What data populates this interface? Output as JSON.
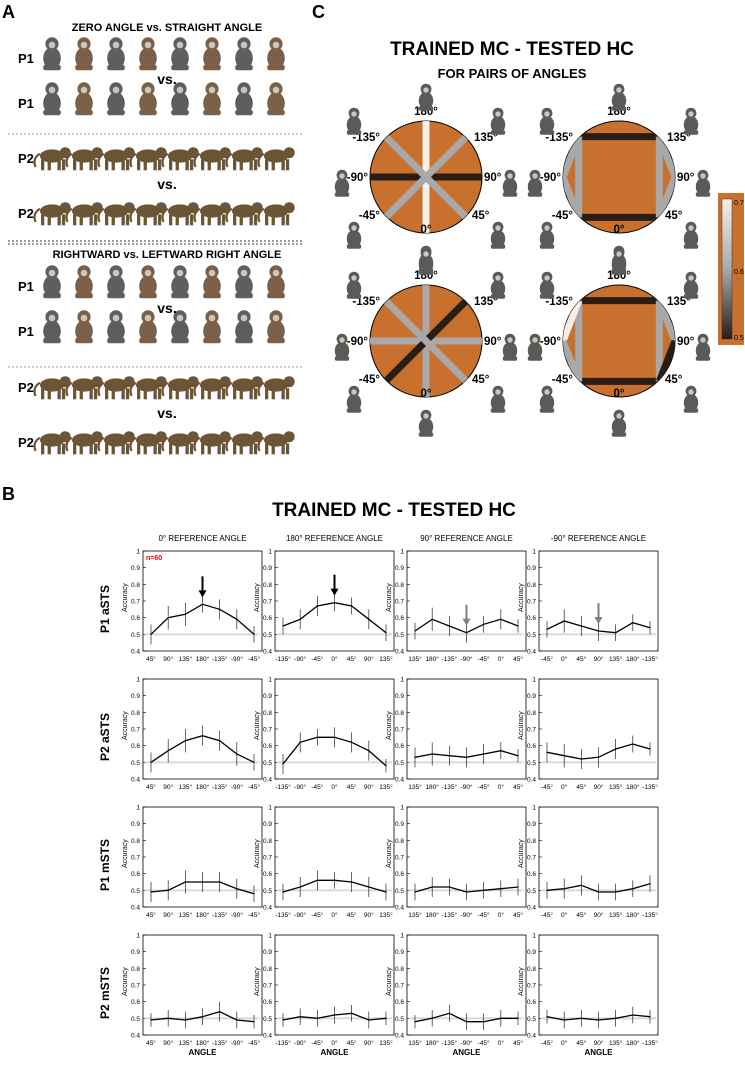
{
  "panels": {
    "a": {
      "letter": "A",
      "section1_title": "ZERO ANGLE vs. STRAIGHT ANGLE",
      "section2_title": "RIGHTWARD vs. LEFTWARD RIGHT ANGLE",
      "rows": [
        {
          "label": "P1",
          "species": "macaque"
        },
        {
          "label": "P1",
          "species": "macaque"
        },
        {
          "label": "P2",
          "species": "baboon"
        },
        {
          "label": "P2",
          "species": "baboon"
        },
        {
          "label": "P1",
          "species": "macaque"
        },
        {
          "label": "P1",
          "species": "macaque"
        },
        {
          "label": "P2",
          "species": "baboon"
        },
        {
          "label": "P2",
          "species": "baboon"
        }
      ],
      "vs_label": "vs."
    },
    "b": {
      "letter": "B",
      "title": "TRAINED MC - TESTED HC"
    },
    "c": {
      "letter": "C",
      "title": "TRAINED MC - TESTED HC",
      "subtitle": "FOR PAIRS OF ANGLES",
      "angle_labels": [
        "180°",
        "135°",
        "90°",
        "45°",
        "0°",
        "-45°",
        "-90°",
        "-135°"
      ],
      "colorbar_ticks": [
        "0.7",
        "0.6",
        "0.5"
      ],
      "colors": {
        "disc": "#c8702e",
        "frame": "#c8702e",
        "bar_high": "#f7efe6",
        "bar_mid": "#a9a9a9",
        "bar_low": "#2a1d14"
      }
    }
  },
  "chart_data": {
    "type": "line",
    "title": "TRAINED MC - TESTED HC",
    "ylabel": "Accuracy",
    "xlabel": "ANGLE",
    "ylim": [
      0.4,
      1.0
    ],
    "yticks": [
      "0.4",
      "0.5",
      "0.6",
      "0.7",
      "0.8",
      "0.9",
      "1"
    ],
    "chance": 0.5,
    "n_label": "n=60",
    "columns": [
      {
        "title": "0° REFERENCE ANGLE",
        "categories": [
          "45°",
          "90°",
          "135°",
          "180°",
          "-135°",
          "-90°",
          "-45°"
        ],
        "arrow_index": 3,
        "arrow_color": "#000000"
      },
      {
        "title": "180° REFERENCE ANGLE",
        "categories": [
          "-135°",
          "-90°",
          "-45°",
          "0°",
          "45°",
          "90°",
          "135°"
        ],
        "arrow_index": 3,
        "arrow_color": "#000000"
      },
      {
        "title": "90° REFERENCE ANGLE",
        "categories": [
          "135°",
          "180°",
          "-135°",
          "-90°",
          "-45°",
          "0°",
          "45°"
        ],
        "arrow_index": 3,
        "arrow_color": "#7f7f7f"
      },
      {
        "title": "-90° REFERENCE ANGLE",
        "categories": [
          "-45°",
          "0°",
          "45°",
          "90°",
          "135°",
          "180°",
          "-135°"
        ],
        "arrow_index": 3,
        "arrow_color": "#7f7f7f"
      }
    ],
    "rows": [
      {
        "label": "P1 aSTS",
        "series": [
          {
            "values": [
              0.5,
              0.6,
              0.62,
              0.68,
              0.65,
              0.59,
              0.5
            ],
            "errors": [
              0.06,
              0.07,
              0.07,
              0.05,
              0.06,
              0.06,
              0.05
            ]
          },
          {
            "values": [
              0.55,
              0.59,
              0.67,
              0.69,
              0.67,
              0.59,
              0.51
            ],
            "errors": [
              0.05,
              0.06,
              0.06,
              0.05,
              0.05,
              0.06,
              0.05
            ]
          },
          {
            "values": [
              0.52,
              0.59,
              0.55,
              0.51,
              0.56,
              0.59,
              0.55
            ],
            "errors": [
              0.05,
              0.07,
              0.06,
              0.06,
              0.05,
              0.06,
              0.04
            ]
          },
          {
            "values": [
              0.53,
              0.58,
              0.55,
              0.52,
              0.51,
              0.57,
              0.54
            ],
            "errors": [
              0.05,
              0.07,
              0.06,
              0.06,
              0.05,
              0.05,
              0.04
            ]
          }
        ]
      },
      {
        "label": "P2 aSTS",
        "series": [
          {
            "values": [
              0.5,
              0.57,
              0.63,
              0.66,
              0.63,
              0.55,
              0.5
            ],
            "errors": [
              0.06,
              0.07,
              0.07,
              0.06,
              0.06,
              0.07,
              0.05
            ]
          },
          {
            "values": [
              0.49,
              0.62,
              0.65,
              0.65,
              0.62,
              0.57,
              0.48
            ],
            "errors": [
              0.06,
              0.06,
              0.05,
              0.06,
              0.06,
              0.06,
              0.04
            ]
          },
          {
            "values": [
              0.53,
              0.55,
              0.54,
              0.53,
              0.55,
              0.57,
              0.54
            ],
            "errors": [
              0.06,
              0.07,
              0.06,
              0.06,
              0.06,
              0.05,
              0.04
            ]
          },
          {
            "values": [
              0.56,
              0.54,
              0.52,
              0.53,
              0.58,
              0.61,
              0.58
            ],
            "errors": [
              0.06,
              0.07,
              0.06,
              0.06,
              0.06,
              0.05,
              0.04
            ]
          }
        ]
      },
      {
        "label": "P1 mSTS",
        "series": [
          {
            "values": [
              0.49,
              0.5,
              0.55,
              0.55,
              0.55,
              0.51,
              0.48
            ],
            "errors": [
              0.06,
              0.06,
              0.07,
              0.06,
              0.06,
              0.06,
              0.05
            ]
          },
          {
            "values": [
              0.49,
              0.52,
              0.56,
              0.56,
              0.55,
              0.52,
              0.49
            ],
            "errors": [
              0.05,
              0.06,
              0.06,
              0.05,
              0.06,
              0.06,
              0.05
            ]
          },
          {
            "values": [
              0.49,
              0.52,
              0.52,
              0.49,
              0.5,
              0.51,
              0.52
            ],
            "errors": [
              0.05,
              0.06,
              0.05,
              0.05,
              0.05,
              0.05,
              0.05
            ]
          },
          {
            "values": [
              0.5,
              0.51,
              0.53,
              0.49,
              0.49,
              0.51,
              0.54
            ],
            "errors": [
              0.05,
              0.06,
              0.06,
              0.05,
              0.05,
              0.05,
              0.05
            ]
          }
        ]
      },
      {
        "label": "P2 mSTS",
        "series": [
          {
            "values": [
              0.49,
              0.5,
              0.49,
              0.51,
              0.54,
              0.49,
              0.48
            ],
            "errors": [
              0.04,
              0.05,
              0.05,
              0.05,
              0.06,
              0.05,
              0.04
            ]
          },
          {
            "values": [
              0.49,
              0.51,
              0.5,
              0.52,
              0.53,
              0.49,
              0.5
            ],
            "errors": [
              0.04,
              0.05,
              0.05,
              0.05,
              0.05,
              0.05,
              0.04
            ]
          },
          {
            "values": [
              0.48,
              0.5,
              0.53,
              0.48,
              0.48,
              0.5,
              0.5
            ],
            "errors": [
              0.04,
              0.05,
              0.05,
              0.05,
              0.05,
              0.05,
              0.04
            ]
          },
          {
            "values": [
              0.51,
              0.49,
              0.5,
              0.49,
              0.5,
              0.52,
              0.51
            ],
            "errors": [
              0.04,
              0.05,
              0.05,
              0.05,
              0.05,
              0.05,
              0.04
            ]
          }
        ]
      }
    ]
  }
}
